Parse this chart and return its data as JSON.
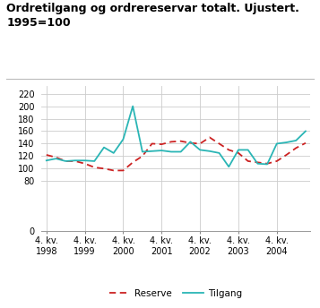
{
  "title_line1": "Ordretilgang og ordrereservar totalt. Ujustert.",
  "title_line2": "1995=100",
  "reserve_x": [
    0,
    1,
    2,
    3,
    4,
    5,
    6,
    7,
    8,
    9,
    10,
    11,
    12,
    13,
    14,
    15,
    16,
    17,
    18,
    19,
    20,
    21,
    22,
    23,
    24,
    25,
    26,
    27
  ],
  "reserve_y": [
    122,
    118,
    112,
    112,
    108,
    102,
    100,
    97,
    97,
    110,
    120,
    140,
    139,
    143,
    144,
    141,
    140,
    150,
    140,
    130,
    125,
    112,
    110,
    108,
    112,
    122,
    133,
    141
  ],
  "tilgang_x": [
    0,
    1,
    2,
    3,
    4,
    5,
    6,
    7,
    8,
    9,
    10,
    11,
    12,
    13,
    14,
    15,
    16,
    17,
    18,
    19,
    20,
    21,
    22,
    23,
    24,
    25,
    26,
    27
  ],
  "tilgang_y": [
    113,
    116,
    112,
    113,
    113,
    112,
    134,
    125,
    147,
    200,
    127,
    128,
    129,
    127,
    127,
    143,
    130,
    128,
    125,
    103,
    130,
    130,
    108,
    107,
    140,
    142,
    145,
    160
  ],
  "xtick_positions": [
    0,
    4,
    8,
    12,
    16,
    20,
    24
  ],
  "xtick_labels": [
    "4. kv.\n1998",
    "4. kv.\n1999",
    "4. kv.\n2000",
    "4. kv.\n2001",
    "4. kv.\n2002",
    "4. kv.\n2003",
    "4. kv.\n2004"
  ],
  "ytick_values": [
    0,
    80,
    100,
    120,
    140,
    160,
    180,
    200,
    220
  ],
  "ylim": [
    0,
    232
  ],
  "xlim": [
    -0.5,
    27.5
  ],
  "reserve_color": "#cc2222",
  "tilgang_color": "#2ab5b5",
  "grid_color": "#cccccc",
  "bg_color": "#ffffff",
  "legend_reserve": "Reserve",
  "legend_tilgang": "Tilgang",
  "title_fontsize": 9,
  "tick_fontsize": 7,
  "legend_fontsize": 7.5
}
